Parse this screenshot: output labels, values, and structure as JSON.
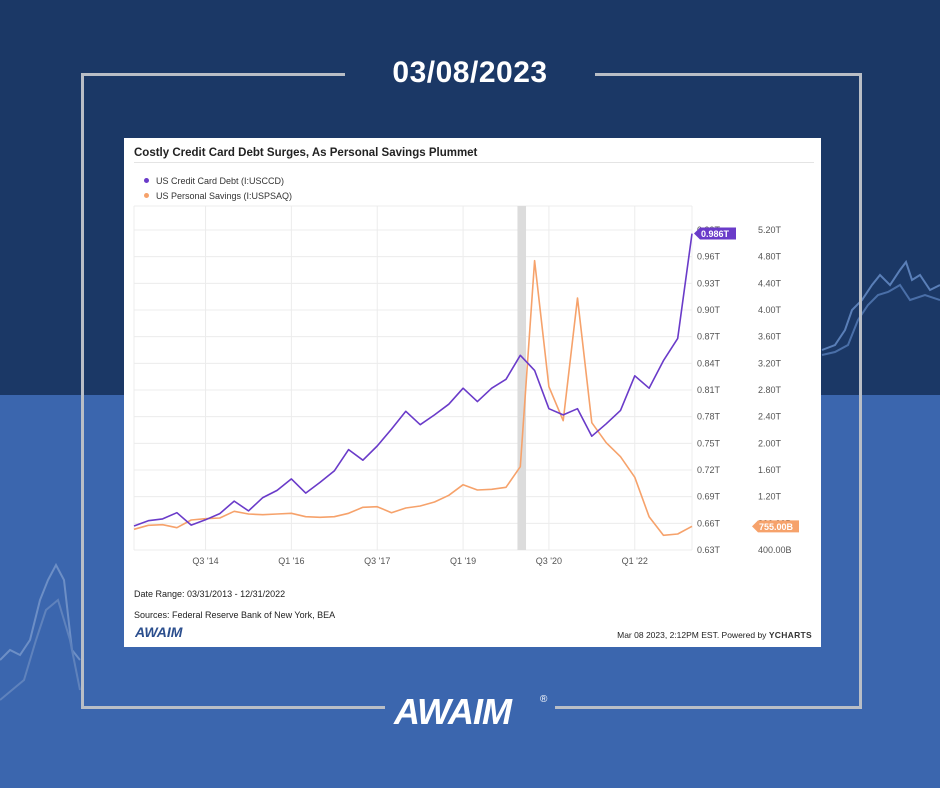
{
  "header": {
    "date": "03/08/2023"
  },
  "brand": {
    "name": "AWAIM",
    "registered": "®"
  },
  "card": {
    "title": "Costly Credit Card Debt Surges, As Personal Savings Plummet",
    "date_range": "Date Range: 03/31/2013 - 12/31/2022",
    "sources": "Sources: Federal Reserve Bank of New York, BEA",
    "timestamp": "Mar 08 2023, 2:12PM EST. Powered by",
    "powered_brand": "YCHARTS",
    "small_logo": "AWAIM"
  },
  "colors": {
    "debt": "#6a3bc9",
    "savings": "#f6a26b",
    "recession": "#dcdcdc",
    "bg_dark": "#1b3866",
    "bg_light": "#3b66ae"
  },
  "chart_data": {
    "type": "line",
    "title": "Costly Credit Card Debt Surges, As Personal Savings Plummet",
    "x_tick_labels": [
      "Q3 '14",
      "Q1 '16",
      "Q3 '17",
      "Q1 '19",
      "Q3 '20",
      "Q1 '22"
    ],
    "x_ticks_decimal_year": [
      2014.5,
      2016.0,
      2017.5,
      2019.0,
      2020.5,
      2022.0
    ],
    "x_range": [
      2013.25,
      2023.0
    ],
    "recession_band": [
      2019.95,
      2020.1
    ],
    "left_axis": {
      "ticks": [
        "0.63T",
        "0.66T",
        "0.69T",
        "0.72T",
        "0.75T",
        "0.78T",
        "0.81T",
        "0.84T",
        "0.87T",
        "0.90T",
        "0.93T",
        "0.96T",
        "0.99T"
      ],
      "range": [
        0.63,
        0.99
      ]
    },
    "right_axis": {
      "ticks": [
        "400.00B",
        "800.00B",
        "1.20T",
        "1.60T",
        "2.00T",
        "2.40T",
        "2.80T",
        "3.20T",
        "3.60T",
        "4.00T",
        "4.40T",
        "4.80T",
        "5.20T"
      ],
      "range_billions": [
        400,
        5200
      ]
    },
    "grid": true,
    "legend_position": "top-left",
    "series": [
      {
        "name": "US Credit Card Debt (I:USCCD)",
        "axis": "left",
        "last_label": "0.986T",
        "points": [
          [
            2013.25,
            0.657
          ],
          [
            2013.5,
            0.663
          ],
          [
            2013.75,
            0.665
          ],
          [
            2014.0,
            0.672
          ],
          [
            2014.25,
            0.658
          ],
          [
            2014.5,
            0.664
          ],
          [
            2014.75,
            0.671
          ],
          [
            2015.0,
            0.685
          ],
          [
            2015.25,
            0.674
          ],
          [
            2015.5,
            0.689
          ],
          [
            2015.75,
            0.697
          ],
          [
            2016.0,
            0.71
          ],
          [
            2016.25,
            0.694
          ],
          [
            2016.5,
            0.706
          ],
          [
            2016.75,
            0.719
          ],
          [
            2017.0,
            0.743
          ],
          [
            2017.25,
            0.731
          ],
          [
            2017.5,
            0.747
          ],
          [
            2017.75,
            0.766
          ],
          [
            2018.0,
            0.786
          ],
          [
            2018.25,
            0.771
          ],
          [
            2018.5,
            0.782
          ],
          [
            2018.75,
            0.794
          ],
          [
            2019.0,
            0.812
          ],
          [
            2019.25,
            0.797
          ],
          [
            2019.5,
            0.812
          ],
          [
            2019.75,
            0.822
          ],
          [
            2020.0,
            0.849
          ],
          [
            2020.25,
            0.832
          ],
          [
            2020.5,
            0.789
          ],
          [
            2020.75,
            0.782
          ],
          [
            2021.0,
            0.789
          ],
          [
            2021.25,
            0.758
          ],
          [
            2021.5,
            0.772
          ],
          [
            2021.75,
            0.787
          ],
          [
            2022.0,
            0.826
          ],
          [
            2022.25,
            0.812
          ],
          [
            2022.5,
            0.843
          ],
          [
            2022.75,
            0.868
          ],
          [
            2023.0,
            0.986
          ]
        ]
      },
      {
        "name": "US Personal Savings (I:USPSAQ)",
        "axis": "right",
        "last_label": "755.00B",
        "points": [
          [
            2013.25,
            710
          ],
          [
            2013.5,
            770
          ],
          [
            2013.75,
            780
          ],
          [
            2014.0,
            735
          ],
          [
            2014.25,
            850
          ],
          [
            2014.5,
            870
          ],
          [
            2014.75,
            880
          ],
          [
            2015.0,
            980
          ],
          [
            2015.25,
            940
          ],
          [
            2015.5,
            930
          ],
          [
            2015.75,
            940
          ],
          [
            2016.0,
            950
          ],
          [
            2016.25,
            900
          ],
          [
            2016.5,
            890
          ],
          [
            2016.75,
            900
          ],
          [
            2017.0,
            950
          ],
          [
            2017.25,
            1040
          ],
          [
            2017.5,
            1050
          ],
          [
            2017.75,
            960
          ],
          [
            2018.0,
            1030
          ],
          [
            2018.25,
            1060
          ],
          [
            2018.5,
            1120
          ],
          [
            2018.75,
            1220
          ],
          [
            2019.0,
            1380
          ],
          [
            2019.25,
            1300
          ],
          [
            2019.5,
            1310
          ],
          [
            2019.75,
            1340
          ],
          [
            2020.0,
            1650
          ],
          [
            2020.25,
            4740
          ],
          [
            2020.5,
            2850
          ],
          [
            2020.75,
            2340
          ],
          [
            2021.0,
            4180
          ],
          [
            2021.25,
            2310
          ],
          [
            2021.5,
            2010
          ],
          [
            2021.75,
            1800
          ],
          [
            2022.0,
            1490
          ],
          [
            2022.25,
            900
          ],
          [
            2022.5,
            620
          ],
          [
            2022.75,
            640
          ],
          [
            2023.0,
            755
          ]
        ]
      }
    ]
  }
}
